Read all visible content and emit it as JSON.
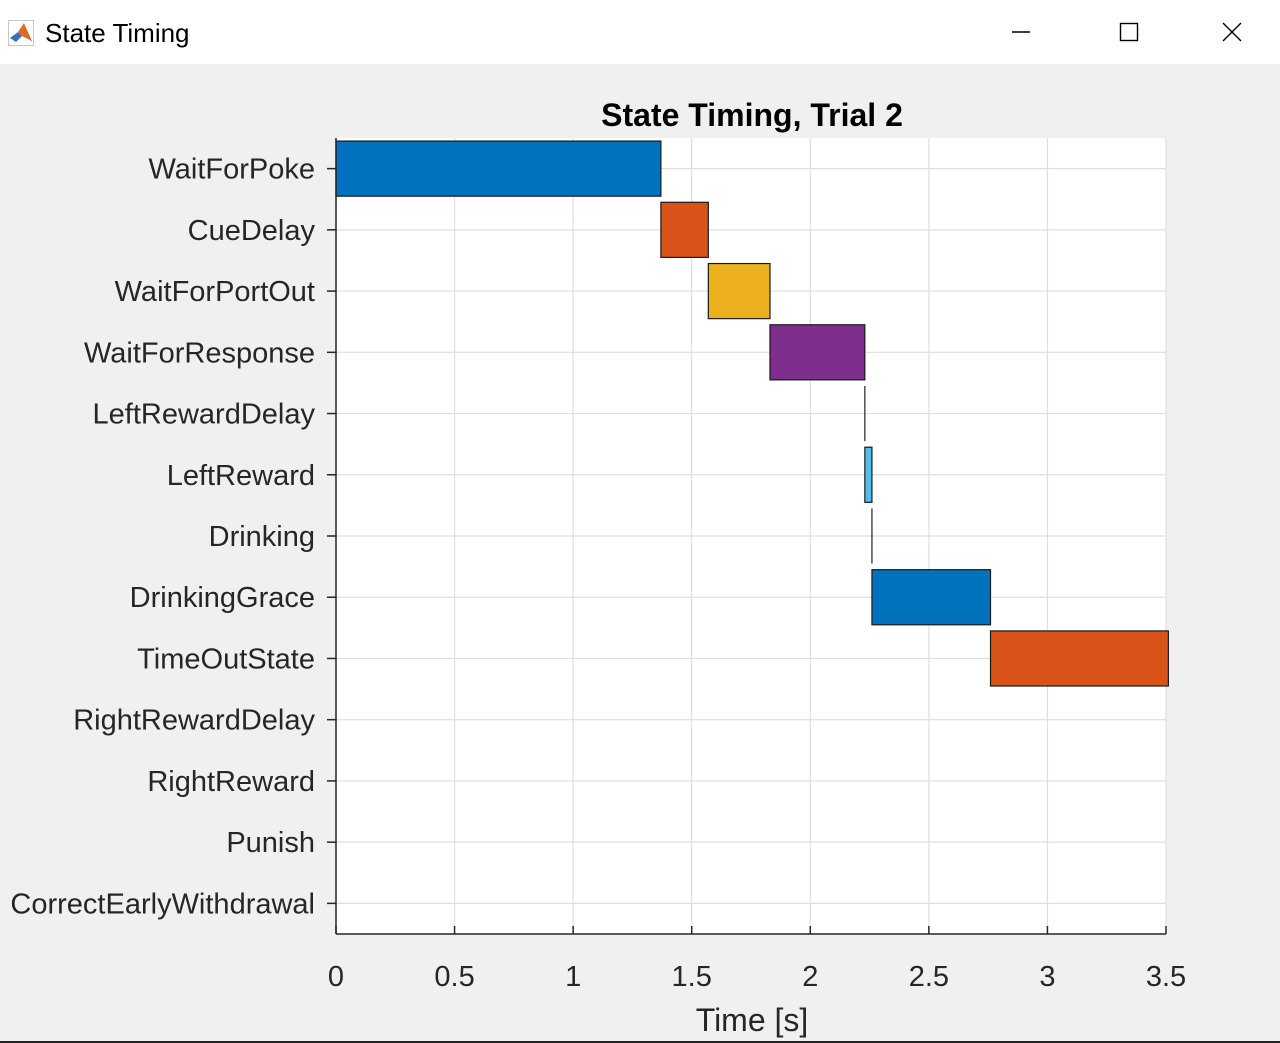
{
  "window": {
    "title": "State Timing",
    "icon": "matlab-icon",
    "controls": [
      "minimize-icon",
      "maximize-icon",
      "close-icon"
    ]
  },
  "chart_data": {
    "type": "bar",
    "orientation": "horizontal-gantt",
    "title": "State Timing, Trial 2",
    "xlabel": "Time [s]",
    "ylabel": "",
    "xlim": [
      0,
      3.5
    ],
    "xticks": [
      0,
      0.5,
      1,
      1.5,
      2,
      2.5,
      3,
      3.5
    ],
    "xtick_labels": [
      "0",
      "0.5",
      "1",
      "1.5",
      "2",
      "2.5",
      "3",
      "3.5"
    ],
    "grid": true,
    "legend": "none",
    "categories": [
      "WaitForPoke",
      "CueDelay",
      "WaitForPortOut",
      "WaitForResponse",
      "LeftRewardDelay",
      "LeftReward",
      "Drinking",
      "DrinkingGrace",
      "TimeOutState",
      "RightRewardDelay",
      "RightReward",
      "Punish",
      "CorrectEarlyWithdrawal"
    ],
    "intervals": [
      {
        "state": "WaitForPoke",
        "start": 0.0,
        "end": 1.37,
        "color": "#0072BD"
      },
      {
        "state": "CueDelay",
        "start": 1.37,
        "end": 1.57,
        "color": "#D95319"
      },
      {
        "state": "WaitForPortOut",
        "start": 1.57,
        "end": 1.83,
        "color": "#EDB120"
      },
      {
        "state": "WaitForResponse",
        "start": 1.83,
        "end": 2.23,
        "color": "#7E2F8E"
      },
      {
        "state": "LeftRewardDelay",
        "start": 2.23,
        "end": 2.23,
        "color": "#77AC30"
      },
      {
        "state": "LeftReward",
        "start": 2.23,
        "end": 2.26,
        "color": "#4DBEEE"
      },
      {
        "state": "Drinking",
        "start": 2.26,
        "end": 2.26,
        "color": "#A2142F"
      },
      {
        "state": "DrinkingGrace",
        "start": 2.26,
        "end": 2.76,
        "color": "#0072BD"
      },
      {
        "state": "TimeOutState",
        "start": 2.76,
        "end": 3.51,
        "color": "#D95319"
      }
    ]
  }
}
